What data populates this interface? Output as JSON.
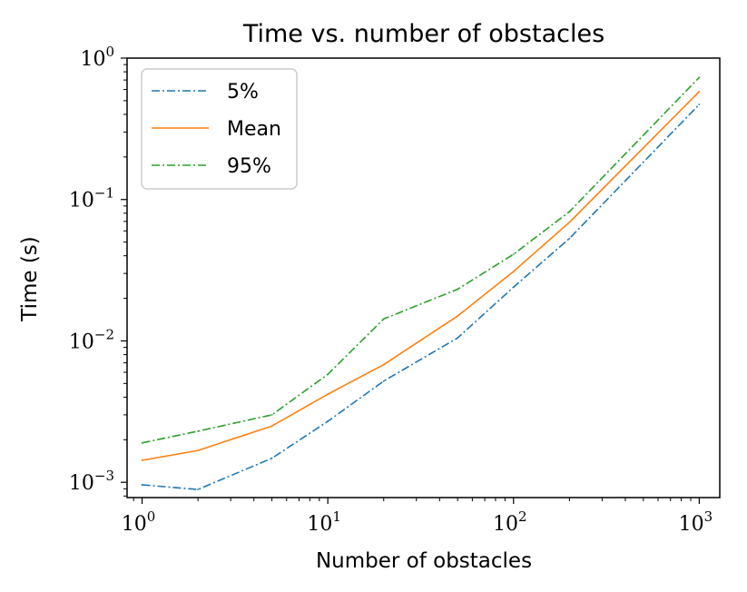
{
  "chart_data": {
    "type": "line",
    "title": "Time vs. number of obstacles",
    "xlabel": "Number of obstacles",
    "ylabel": "Time (s)",
    "xscale": "log",
    "yscale": "log",
    "xlim": [
      0.83,
      1290
    ],
    "ylim": [
      0.00078,
      1.0
    ],
    "x": [
      1,
      2,
      5,
      10,
      20,
      50,
      100,
      200,
      1000
    ],
    "x_ticks": [
      {
        "value": 1,
        "base": "10",
        "exp": "0"
      },
      {
        "value": 10,
        "base": "10",
        "exp": "1"
      },
      {
        "value": 100,
        "base": "10",
        "exp": "2"
      },
      {
        "value": 1000,
        "base": "10",
        "exp": "3"
      }
    ],
    "y_ticks": [
      {
        "value": 0.001,
        "base": "10",
        "exp": "−3"
      },
      {
        "value": 0.01,
        "base": "10",
        "exp": "−2"
      },
      {
        "value": 0.1,
        "base": "10",
        "exp": "−1"
      },
      {
        "value": 1,
        "base": "10",
        "exp": "0"
      }
    ],
    "legend_position": "top-left",
    "series": [
      {
        "name": "5%",
        "color": "#1f77b4",
        "linestyle": "dashdot",
        "values": [
          0.00096,
          0.00089,
          0.00148,
          0.0027,
          0.0052,
          0.0105,
          0.024,
          0.053,
          0.47
        ]
      },
      {
        "name": "Mean",
        "color": "#ff7f0e",
        "linestyle": "solid",
        "values": [
          0.00143,
          0.00168,
          0.0025,
          0.0042,
          0.0068,
          0.015,
          0.031,
          0.069,
          0.58
        ]
      },
      {
        "name": "95%",
        "color": "#2ca02c",
        "linestyle": "dashdot",
        "values": [
          0.0019,
          0.0023,
          0.003,
          0.0058,
          0.0143,
          0.0232,
          0.041,
          0.082,
          0.73
        ]
      }
    ]
  }
}
